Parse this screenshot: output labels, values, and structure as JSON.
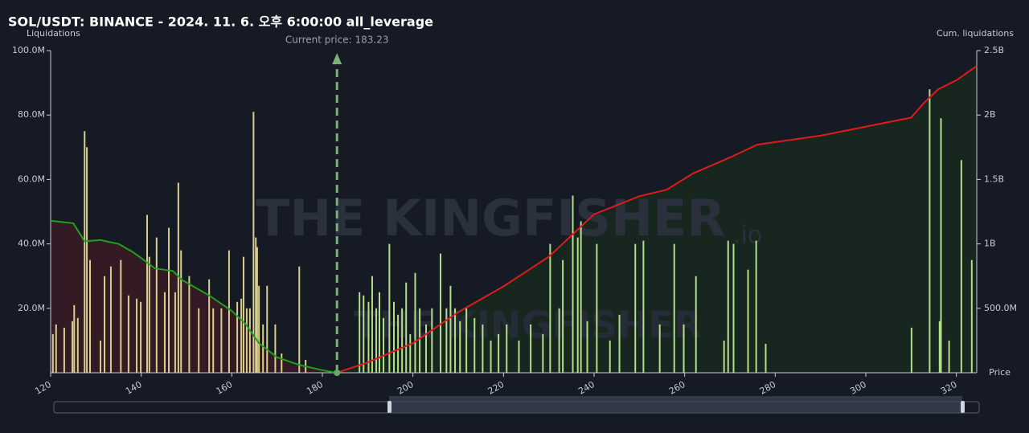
{
  "chart_data": {
    "type": "bar_line",
    "title": "SOL/USDT: BINANCE - 2024. 11. 6. 오후 6:00:00 all_leverage",
    "y_label": "Liquidations",
    "y2_label": "Cum. liquidations",
    "x_label": "Price",
    "annotation": "Current price: 183.23",
    "current_price": 183.23,
    "watermark": "THE KINGFISHER",
    "watermark_suffix": ".io",
    "xlim": [
      120,
      324.5
    ],
    "xticks": [
      120,
      140,
      160,
      180,
      200,
      220,
      240,
      260,
      280,
      300,
      320
    ],
    "ylim": [
      0,
      100000000
    ],
    "yticks": [
      {
        "value": 20000000,
        "label": "20.0M"
      },
      {
        "value": 40000000,
        "label": "40.0M"
      },
      {
        "value": 60000000,
        "label": "60.0M"
      },
      {
        "value": 80000000,
        "label": "80.0M"
      },
      {
        "value": 100000000,
        "label": "100.0M"
      }
    ],
    "y2lim": [
      0,
      2500000000
    ],
    "y2ticks": [
      {
        "value": 500000000,
        "label": "500.0M"
      },
      {
        "value": 1000000000,
        "label": "1B"
      },
      {
        "value": 1500000000,
        "label": "1.5B"
      },
      {
        "value": 2000000000,
        "label": "2B"
      },
      {
        "value": 2500000000,
        "label": "2.5B"
      }
    ],
    "series": [
      {
        "kind": "bar",
        "color": "#d8cf8e",
        "x": [
          120.5,
          121.2,
          123.0,
          124.8,
          125.2,
          126.0,
          127.5,
          128.0,
          128.7,
          131.0,
          131.9,
          133.3,
          135.5,
          137.2,
          139.0,
          139.9,
          141.3,
          141.8,
          143.4,
          145.2,
          146.1,
          147.5,
          148.2,
          148.8,
          150.6,
          152.7,
          155.0,
          155.9,
          157.7,
          159.4,
          161.2,
          162.1,
          162.6,
          163.3,
          164.0,
          164.8,
          165.3,
          165.6,
          166.0,
          166.9,
          167.8,
          169.6,
          171.0,
          174.9,
          176.3
        ],
        "values": [
          12000000,
          15000000,
          14000000,
          16000000,
          21000000,
          17000000,
          75000000,
          70000000,
          35000000,
          10000000,
          30000000,
          33000000,
          35000000,
          24000000,
          23000000,
          22000000,
          49000000,
          36000000,
          42000000,
          25000000,
          45000000,
          25000000,
          59000000,
          38000000,
          30000000,
          20000000,
          29000000,
          20000000,
          20000000,
          38000000,
          22000000,
          23000000,
          36000000,
          20000000,
          20000000,
          81000000,
          42000000,
          39000000,
          27000000,
          15000000,
          27000000,
          15000000,
          6000000,
          33000000,
          4000000
        ]
      },
      {
        "kind": "bar",
        "color": "#b3df8a",
        "x": [
          188.2,
          189.1,
          190.2,
          191.0,
          191.9,
          192.6,
          193.5,
          194.8,
          195.8,
          196.7,
          197.6,
          198.5,
          199.4,
          200.5,
          201.5,
          202.9,
          204.2,
          206.1,
          207.4,
          208.3,
          209.3,
          210.4,
          211.8,
          213.6,
          215.4,
          217.2,
          218.9,
          220.7,
          223.4,
          226.0,
          228.7,
          230.3,
          232.3,
          233.1,
          235.3,
          236.4,
          237.1,
          238.5,
          240.6,
          243.5,
          245.6,
          249.1,
          250.9,
          254.5,
          257.7,
          259.8,
          262.5,
          268.7,
          269.6,
          270.8,
          274.0,
          275.8,
          277.9,
          310.1,
          314.1,
          316.3,
          316.6,
          318.4,
          321.1,
          323.4
        ],
        "values": [
          25000000,
          24000000,
          22000000,
          30000000,
          20000000,
          25000000,
          17000000,
          40000000,
          22000000,
          18000000,
          20000000,
          28000000,
          12000000,
          31000000,
          20000000,
          15000000,
          20000000,
          37000000,
          20000000,
          27000000,
          20000000,
          16000000,
          20000000,
          17000000,
          15000000,
          10000000,
          12000000,
          15000000,
          10000000,
          15000000,
          12000000,
          40000000,
          20000000,
          35000000,
          55000000,
          42000000,
          47000000,
          16000000,
          40000000,
          10000000,
          18000000,
          40000000,
          41000000,
          15000000,
          40000000,
          15000000,
          30000000,
          10000000,
          41000000,
          40000000,
          32000000,
          41000000,
          9000000,
          14000000,
          88000000,
          16000000,
          79000000,
          10000000,
          66000000,
          35000000
        ]
      },
      {
        "kind": "line",
        "axis": "y2",
        "color": "#1fa01f",
        "fill": "#3a1b24",
        "x": [
          120,
          125,
          127.5,
          131,
          135,
          138,
          140,
          143,
          147,
          149,
          155,
          160,
          163,
          166,
          170,
          175,
          180,
          183.23
        ],
        "values": [
          1180000000,
          1160000000,
          1020000000,
          1030000000,
          1000000000,
          940000000,
          890000000,
          810000000,
          790000000,
          720000000,
          600000000,
          480000000,
          380000000,
          230000000,
          120000000,
          60000000,
          20000000,
          0
        ]
      },
      {
        "kind": "line",
        "axis": "y2",
        "color": "#e01b1b",
        "fill": "#17291f",
        "x": [
          183.23,
          190,
          200,
          210,
          220,
          230,
          240,
          250,
          256,
          262,
          270,
          276,
          290,
          310,
          313,
          316,
          320,
          324.5
        ],
        "values": [
          0,
          80000000,
          230000000,
          470000000,
          670000000,
          900000000,
          1230000000,
          1370000000,
          1420000000,
          1550000000,
          1670000000,
          1770000000,
          1840000000,
          1980000000,
          2100000000,
          2200000000,
          2270000000,
          2380000000
        ]
      }
    ]
  }
}
